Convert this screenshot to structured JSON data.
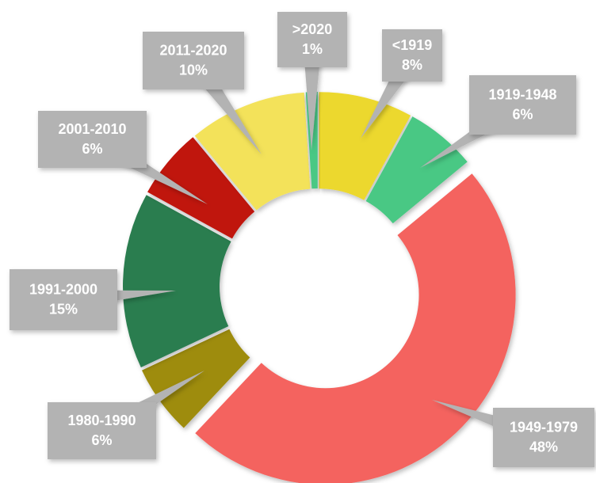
{
  "chart_data": {
    "type": "donut",
    "categories": [
      "<1919",
      "1919-1948",
      "1949-1979",
      "1980-1990",
      "1991-2000",
      "2001-2010",
      "2011-2020",
      ">2020"
    ],
    "values": [
      8,
      6,
      48,
      6,
      15,
      6,
      10,
      1
    ],
    "value_labels": [
      "8%",
      "6%",
      "48%",
      "6%",
      "15%",
      "6%",
      "10%",
      "1%"
    ],
    "colors": [
      "#ecd82e",
      "#4ac884",
      "#f4645f",
      "#9e8c0e",
      "#2a7d4f",
      "#c0130e",
      "#f3e25a",
      "#4ac884"
    ]
  }
}
